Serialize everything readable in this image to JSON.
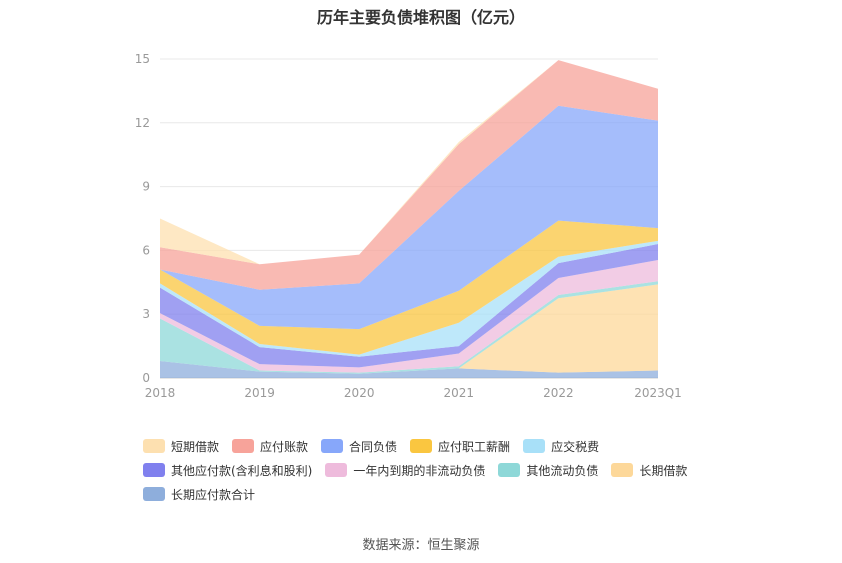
{
  "chart_data": {
    "type": "area",
    "stacked": true,
    "title": "历年主要负债堆积图（亿元）",
    "xlabel": "",
    "ylabel": "",
    "categories": [
      "2018",
      "2019",
      "2020",
      "2021",
      "2022",
      "2023Q1"
    ],
    "ylim": [
      0,
      15
    ],
    "yticks": [
      0,
      3,
      6,
      9,
      12,
      15
    ],
    "grid": true,
    "legend_position": "bottom",
    "series": [
      {
        "name": "长期应付款合计",
        "color": "#8eaedc",
        "values": [
          0.8,
          0.3,
          0.2,
          0.45,
          0.25,
          0.35
        ]
      },
      {
        "name": "长期借款",
        "color": "#fdd89a",
        "values": [
          0,
          0,
          0,
          0,
          3.5,
          4.05
        ]
      },
      {
        "name": "其他流动负债",
        "color": "#8ed8d8",
        "values": [
          2.0,
          0.05,
          0.05,
          0.1,
          0.15,
          0.15
        ]
      },
      {
        "name": "一年内到期的非流动负债",
        "color": "#eebbdc",
        "values": [
          0.25,
          0.3,
          0.25,
          0.6,
          0.8,
          1.0
        ]
      },
      {
        "name": "其他应付款(含利息和股利)",
        "color": "#8080ee",
        "values": [
          1.2,
          0.8,
          0.5,
          0.35,
          0.7,
          0.75
        ]
      },
      {
        "name": "应交税费",
        "color": "#a8e0f8",
        "values": [
          0.2,
          0.15,
          0.1,
          1.1,
          0.3,
          0.15
        ]
      },
      {
        "name": "应付职工薪酬",
        "color": "#fac640",
        "values": [
          0.65,
          0.85,
          1.2,
          1.5,
          1.7,
          0.6
        ]
      },
      {
        "name": "合同负债",
        "color": "#87a7fa",
        "values": [
          0,
          1.7,
          2.15,
          4.7,
          5.4,
          5.05
        ]
      },
      {
        "name": "应付账款",
        "color": "#f7a39a",
        "values": [
          1.05,
          1.2,
          1.35,
          2.2,
          2.15,
          1.5
        ]
      },
      {
        "name": "短期借款",
        "color": "#fde0b0",
        "values": [
          1.35,
          0,
          0,
          0.1,
          0,
          0
        ]
      }
    ],
    "legend": [
      [
        "短期借款",
        "应付账款",
        "合同负债",
        "应付职工薪酬",
        "应交税费"
      ],
      [
        "其他应付款(含利息和股利)",
        "一年内到期的非流动负债",
        "其他流动负债",
        "长期借款"
      ],
      [
        "长期应付款合计"
      ]
    ],
    "legend_colors": {
      "短期借款": "#fde0b0",
      "应付账款": "#f7a39a",
      "合同负债": "#87a7fa",
      "应付职工薪酬": "#fac640",
      "应交税费": "#a8e0f8",
      "其他应付款(含利息和股利)": "#8080ee",
      "一年内到期的非流动负债": "#eebbdc",
      "其他流动负债": "#8ed8d8",
      "长期借款": "#fdd89a",
      "长期应付款合计": "#8eaedc"
    },
    "source": "数据来源：恒生聚源"
  }
}
